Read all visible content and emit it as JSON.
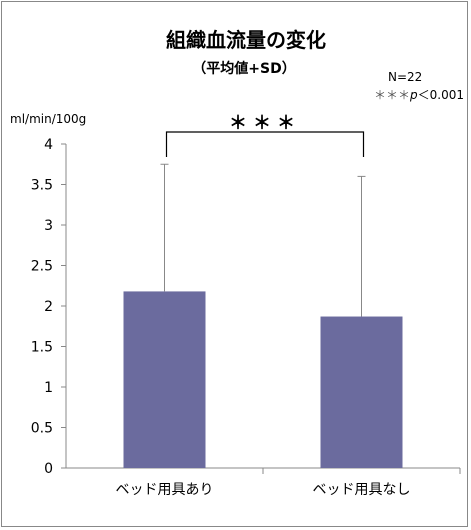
{
  "chart_data": {
    "type": "bar",
    "title": "組織血流量の変化",
    "subtitle": "（平均値+SD）",
    "ylabel": "ml/min/100g",
    "xlabel": "",
    "categories": [
      "ベッド用具あり",
      "ベッド用具なし"
    ],
    "values": [
      2.18,
      1.87
    ],
    "error_bars_sd": [
      1.57,
      1.73
    ],
    "ylim": [
      0,
      4
    ],
    "yticks": [
      "0",
      "0.5",
      "1",
      "1.5",
      "2",
      "2.5",
      "3",
      "3.5",
      "4"
    ],
    "grid": false,
    "bar_color": "#6B6B9E",
    "annotations": {
      "n": "N=22",
      "significance_legend_mark": "＊＊＊",
      "significance_legend_p": "p",
      "significance_legend_rest": "＜0.001",
      "bracket_label": "＊＊＊"
    }
  }
}
